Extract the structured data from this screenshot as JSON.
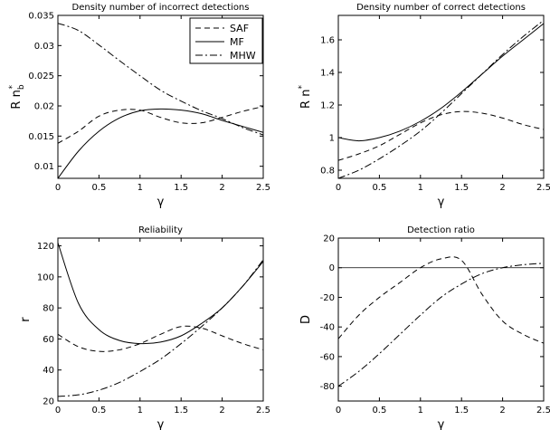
{
  "chart_data": [
    {
      "type": "line",
      "title": "Density number of incorrect detections",
      "xlabel": "γ",
      "ylabel": "R n",
      "ylabel_sub": "b",
      "ylabel_sup": "*",
      "xlim": [
        0,
        2.5
      ],
      "ylim": [
        0.008,
        0.035
      ],
      "xticks": [
        "0",
        "0.5",
        "1",
        "1.5",
        "2",
        "2.5"
      ],
      "yticks": [
        "0.01",
        "0.015",
        "0.02",
        "0.025",
        "0.03",
        "0.035"
      ],
      "legend": [
        "SAF",
        "MF",
        "MHW"
      ],
      "legend_position": "top-right",
      "series": [
        {
          "name": "SAF",
          "style": "dashed",
          "x": [
            0,
            0.25,
            0.5,
            0.75,
            1.0,
            1.25,
            1.5,
            1.75,
            2.0,
            2.25,
            2.5
          ],
          "y": [
            0.0138,
            0.0158,
            0.0183,
            0.0193,
            0.0193,
            0.0181,
            0.0172,
            0.0172,
            0.0181,
            0.0191,
            0.0199
          ]
        },
        {
          "name": "MF",
          "style": "solid",
          "x": [
            0,
            0.25,
            0.5,
            0.75,
            1.0,
            1.25,
            1.5,
            1.75,
            2.0,
            2.25,
            2.5
          ],
          "y": [
            0.008,
            0.0125,
            0.0158,
            0.018,
            0.0192,
            0.0195,
            0.0193,
            0.0187,
            0.0176,
            0.0166,
            0.0156
          ]
        },
        {
          "name": "MHW",
          "style": "dashdot",
          "x": [
            0,
            0.25,
            0.5,
            0.75,
            1.0,
            1.25,
            1.5,
            1.75,
            2.0,
            2.25,
            2.5
          ],
          "y": [
            0.0337,
            0.0325,
            0.0301,
            0.0275,
            0.025,
            0.0226,
            0.0208,
            0.0192,
            0.0179,
            0.0164,
            0.0152
          ]
        }
      ]
    },
    {
      "type": "line",
      "title": "Density number of correct detections",
      "xlabel": "γ",
      "ylabel": "R n",
      "ylabel_sub": "",
      "ylabel_sup": "*",
      "xlim": [
        0,
        2.5
      ],
      "ylim": [
        0.75,
        1.75
      ],
      "xticks": [
        "0",
        "0.5",
        "1",
        "1.5",
        "2",
        "2.5"
      ],
      "yticks": [
        "0.8",
        "1",
        "1.2",
        "1.4",
        "1.6"
      ],
      "series": [
        {
          "name": "SAF",
          "style": "dashed",
          "x": [
            0,
            0.25,
            0.5,
            0.75,
            1.0,
            1.25,
            1.5,
            1.75,
            2.0,
            2.25,
            2.5
          ],
          "y": [
            0.86,
            0.9,
            0.95,
            1.02,
            1.09,
            1.14,
            1.16,
            1.15,
            1.12,
            1.08,
            1.05
          ]
        },
        {
          "name": "MF",
          "style": "solid",
          "x": [
            0,
            0.25,
            0.5,
            0.75,
            1.0,
            1.25,
            1.5,
            1.75,
            2.0,
            2.25,
            2.5
          ],
          "y": [
            1.0,
            0.98,
            1.0,
            1.04,
            1.1,
            1.18,
            1.28,
            1.39,
            1.5,
            1.6,
            1.7
          ]
        },
        {
          "name": "MHW",
          "style": "dashdot",
          "x": [
            0,
            0.25,
            0.5,
            0.75,
            1.0,
            1.25,
            1.5,
            1.75,
            2.0,
            2.25,
            2.5
          ],
          "y": [
            0.75,
            0.8,
            0.87,
            0.95,
            1.04,
            1.15,
            1.27,
            1.39,
            1.51,
            1.62,
            1.72
          ]
        }
      ]
    },
    {
      "type": "line",
      "title": "Reliability",
      "xlabel": "γ",
      "ylabel": "r",
      "ylabel_sub": "",
      "ylabel_sup": "",
      "xlim": [
        0,
        2.5
      ],
      "ylim": [
        20,
        125
      ],
      "xticks": [
        "0",
        "0.5",
        "1",
        "1.5",
        "2",
        "2.5"
      ],
      "yticks": [
        "20",
        "40",
        "60",
        "80",
        "100",
        "120"
      ],
      "series": [
        {
          "name": "SAF",
          "style": "dashed",
          "x": [
            0,
            0.25,
            0.5,
            0.75,
            1.0,
            1.25,
            1.5,
            1.75,
            2.0,
            2.25,
            2.5
          ],
          "y": [
            63,
            55,
            52,
            53,
            57,
            63,
            68,
            67,
            62,
            57,
            53
          ]
        },
        {
          "name": "MF",
          "style": "solid",
          "x": [
            0,
            0.25,
            0.5,
            0.75,
            1.0,
            1.25,
            1.5,
            1.75,
            2.0,
            2.25,
            2.5
          ],
          "y": [
            122,
            83,
            66,
            59,
            57,
            58,
            62,
            70,
            80,
            94,
            110
          ]
        },
        {
          "name": "MHW",
          "style": "dashdot",
          "x": [
            0,
            0.25,
            0.5,
            0.75,
            1.0,
            1.25,
            1.5,
            1.75,
            2.0,
            2.25,
            2.5
          ],
          "y": [
            23,
            24,
            27,
            32,
            39,
            47,
            57,
            68,
            80,
            94,
            111
          ]
        }
      ]
    },
    {
      "type": "line",
      "title": "Detection ratio",
      "xlabel": "γ",
      "ylabel": "D",
      "ylabel_sub": "",
      "ylabel_sup": "",
      "xlim": [
        0,
        2.5
      ],
      "ylim": [
        -90,
        20
      ],
      "xticks": [
        "0",
        "0.5",
        "1",
        "1.5",
        "2",
        "2.5"
      ],
      "yticks": [
        "-80",
        "-60",
        "-40",
        "-20",
        "0",
        "20"
      ],
      "zero_line": true,
      "series": [
        {
          "name": "SAF",
          "style": "dashed",
          "x": [
            0,
            0.25,
            0.5,
            0.75,
            1.0,
            1.25,
            1.5,
            1.75,
            2.0,
            2.25,
            2.5
          ],
          "y": [
            -48,
            -32,
            -20,
            -10,
            0,
            6,
            5,
            -18,
            -36,
            -45,
            -51
          ]
        },
        {
          "name": "MHW",
          "style": "dashdot",
          "x": [
            0,
            0.25,
            0.5,
            0.75,
            1.0,
            1.25,
            1.5,
            1.75,
            2.0,
            2.25,
            2.5
          ],
          "y": [
            -80,
            -70,
            -58,
            -45,
            -32,
            -20,
            -11,
            -4,
            0,
            2,
            3
          ]
        }
      ]
    }
  ]
}
